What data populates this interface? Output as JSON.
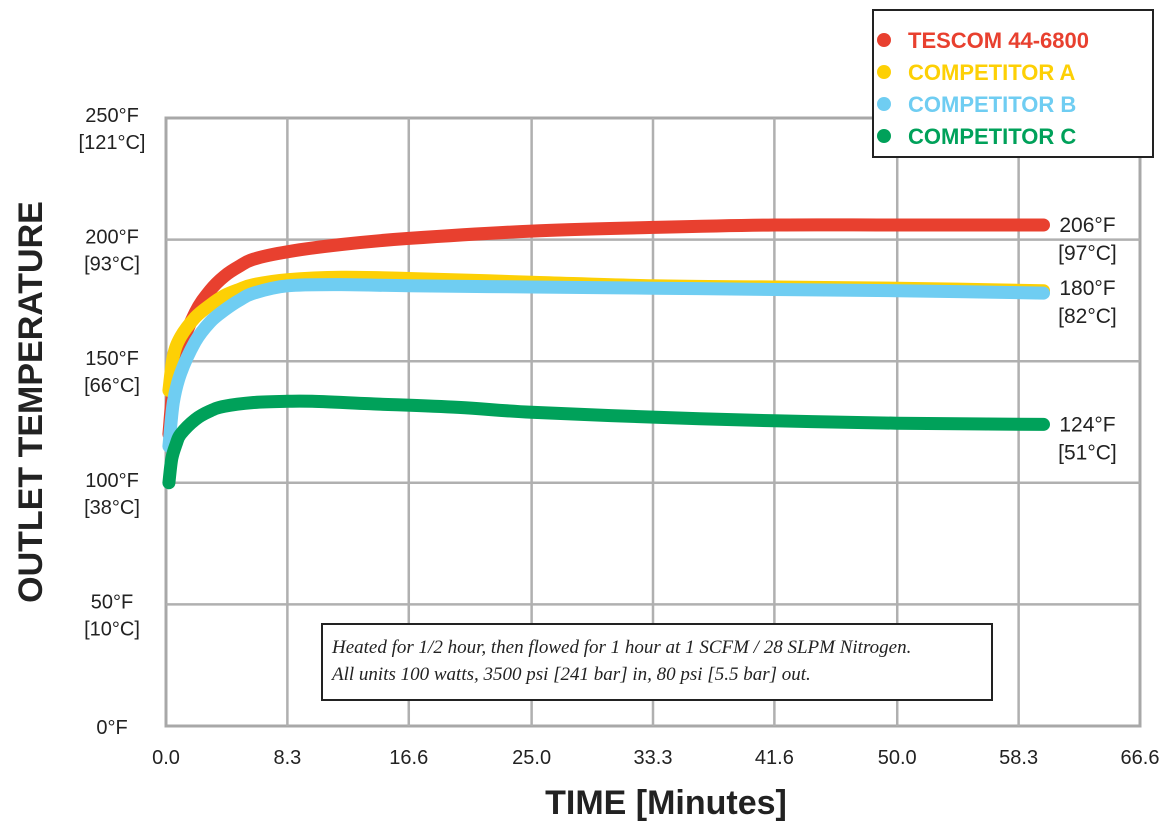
{
  "chart_data": {
    "type": "line",
    "xlabel": "TIME [Minutes]",
    "ylabel": "OUTLET TEMPERATURE",
    "xlim": [
      0,
      66.6
    ],
    "ylim": [
      0,
      250
    ],
    "x_ticks": [
      "0.0",
      "8.3",
      "16.6",
      "25.0",
      "33.3",
      "41.6",
      "50.0",
      "58.3",
      "66.6"
    ],
    "y_ticks": [
      {
        "value": 0,
        "f": "0°F",
        "c": ""
      },
      {
        "value": 50,
        "f": "50°F",
        "c": "[10°C]"
      },
      {
        "value": 100,
        "f": "100°F",
        "c": "[38°C]"
      },
      {
        "value": 150,
        "f": "150°F",
        "c": "[66°C]"
      },
      {
        "value": 200,
        "f": "200°F",
        "c": "[93°C]"
      },
      {
        "value": 250,
        "f": "250°F",
        "c": "[121°C]"
      }
    ],
    "grid": true,
    "legend_position": "top-right",
    "series": [
      {
        "name": "TESCOM 44-6800",
        "color": "#e8402f",
        "x": [
          0.2,
          0.5,
          1,
          2,
          3,
          4,
          5,
          6,
          8.3,
          12,
          16.6,
          25,
          33.3,
          41.6,
          50,
          60
        ],
        "y": [
          120,
          140,
          155,
          170,
          179,
          185,
          189,
          192,
          195,
          198,
          200.5,
          203.5,
          205,
          206,
          206,
          206
        ]
      },
      {
        "name": "COMPETITOR A",
        "color": "#fdd005",
        "x": [
          0.2,
          0.5,
          1,
          2,
          3,
          4,
          5,
          6,
          8.3,
          12,
          16.6,
          25,
          33.3,
          41.6,
          50,
          60
        ],
        "y": [
          138,
          152,
          160,
          168,
          173,
          177,
          179.5,
          181.5,
          183.5,
          184.5,
          184,
          182.5,
          181,
          180.5,
          180,
          179
        ]
      },
      {
        "name": "COMPETITOR B",
        "color": "#6fcdf2",
        "x": [
          0.2,
          0.5,
          1,
          2,
          3,
          4,
          5,
          6,
          8.3,
          12,
          16.6,
          25,
          33.3,
          41.6,
          50,
          60
        ],
        "y": [
          115,
          133,
          145,
          158,
          166,
          171,
          175,
          178,
          181,
          181.5,
          181,
          180.5,
          180,
          179.5,
          179,
          178
        ]
      },
      {
        "name": "COMPETITOR C",
        "color": "#00a15a",
        "x": [
          0.2,
          0.4,
          0.7,
          1,
          2,
          3,
          4,
          6,
          8.3,
          10,
          14,
          20,
          25,
          33.3,
          41.6,
          50,
          60
        ],
        "y": [
          100,
          110,
          116,
          120,
          126,
          129.5,
          131.5,
          133,
          133.5,
          133.5,
          132.5,
          131,
          129,
          127,
          125.5,
          124.5,
          124
        ]
      }
    ],
    "end_labels": [
      {
        "f": "206°F",
        "c": "[97°C]",
        "value": 206
      },
      {
        "f": "180°F",
        "c": "[82°C]",
        "value": 180
      },
      {
        "f": "124°F",
        "c": "[51°C]",
        "value": 124
      }
    ],
    "note": [
      "Heated for 1/2 hour, then flowed for 1 hour at 1 SCFM / 28 SLPM Nitrogen.",
      "All units 100 watts, 3500 psi [241 bar] in, 80 psi [5.5 bar] out."
    ]
  }
}
